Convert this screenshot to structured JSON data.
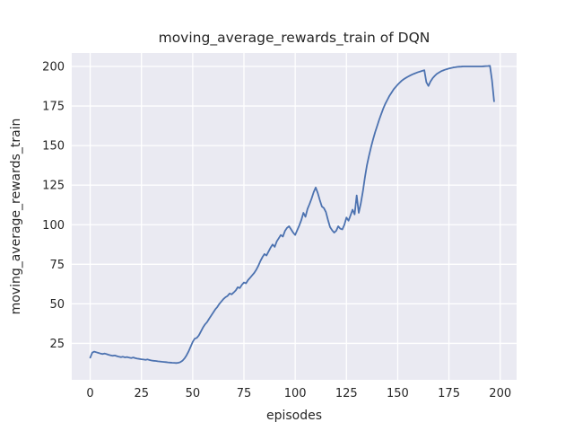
{
  "figure": {
    "background": "#ffffff",
    "axes_background": "#eaeaf2",
    "grid_color": "#ffffff",
    "text_color": "#262626"
  },
  "chart_data": {
    "type": "line",
    "title": "moving_average_rewards_train of DQN",
    "xlabel": "episodes",
    "ylabel": "moving_average_rewards_train",
    "grid": true,
    "legend": false,
    "x_ticks": [
      0,
      25,
      50,
      75,
      100,
      125,
      150,
      175,
      200
    ],
    "y_ticks": [
      25,
      50,
      75,
      100,
      125,
      150,
      175,
      200
    ],
    "xlim": [
      -9,
      208
    ],
    "ylim": [
      2,
      208.5
    ],
    "series": [
      {
        "name": "moving_average_rewards_train",
        "color": "#4c72b0",
        "x_start": 0,
        "x_step": 1,
        "values": [
          16.0,
          19.2,
          19.8,
          19.4,
          19.0,
          18.6,
          18.3,
          18.6,
          18.2,
          17.8,
          17.5,
          17.2,
          17.4,
          17.0,
          16.6,
          16.3,
          16.6,
          16.2,
          16.4,
          16.0,
          15.8,
          16.1,
          15.7,
          15.4,
          15.2,
          15.0,
          14.8,
          14.6,
          14.9,
          14.5,
          14.2,
          14.0,
          13.9,
          13.7,
          13.6,
          13.4,
          13.3,
          13.2,
          13.0,
          12.9,
          12.8,
          12.7,
          12.6,
          12.8,
          13.2,
          14.0,
          15.5,
          17.5,
          20.0,
          23.0,
          26.0,
          28.0,
          28.5,
          30.0,
          32.5,
          35.0,
          37.0,
          38.5,
          40.5,
          42.5,
          44.5,
          46.5,
          48.0,
          50.0,
          51.5,
          53.0,
          54.2,
          55.0,
          56.5,
          56.0,
          57.2,
          58.5,
          60.5,
          60.0,
          62.0,
          63.5,
          63.0,
          65.0,
          66.5,
          68.0,
          69.5,
          71.5,
          74.0,
          77.0,
          79.5,
          81.5,
          80.5,
          83.0,
          85.5,
          87.5,
          86.0,
          89.5,
          91.5,
          93.5,
          92.5,
          96.0,
          98.0,
          99.0,
          97.0,
          95.0,
          93.5,
          96.5,
          99.5,
          103.0,
          107.5,
          105.0,
          110.0,
          113.0,
          116.5,
          120.5,
          123.5,
          120.0,
          115.5,
          111.5,
          110.5,
          108.0,
          103.0,
          98.5,
          96.5,
          95.0,
          96.2,
          99.0,
          97.5,
          97.0,
          100.0,
          104.5,
          102.5,
          106.0,
          109.5,
          106.5,
          118.5,
          107.5,
          113.5,
          121.0,
          130.0,
          137.5,
          143.5,
          149.0,
          154.0,
          158.5,
          162.5,
          166.5,
          170.0,
          173.5,
          176.5,
          179.0,
          181.5,
          183.5,
          185.5,
          187.0,
          188.5,
          189.8,
          191.0,
          192.0,
          192.8,
          193.5,
          194.2,
          194.8,
          195.4,
          195.9,
          196.4,
          196.8,
          197.2,
          197.6,
          190.0,
          187.7,
          190.5,
          192.5,
          194.0,
          195.2,
          196.0,
          196.8,
          197.4,
          197.9,
          198.3,
          198.7,
          199.0,
          199.3,
          199.5,
          199.7,
          199.8,
          199.9,
          200.0,
          200.0,
          200.0,
          200.0,
          200.0,
          200.0,
          200.0,
          200.0,
          200.0,
          200.0,
          200.1,
          200.2,
          200.3,
          200.4,
          191.0,
          178.0
        ]
      }
    ]
  }
}
